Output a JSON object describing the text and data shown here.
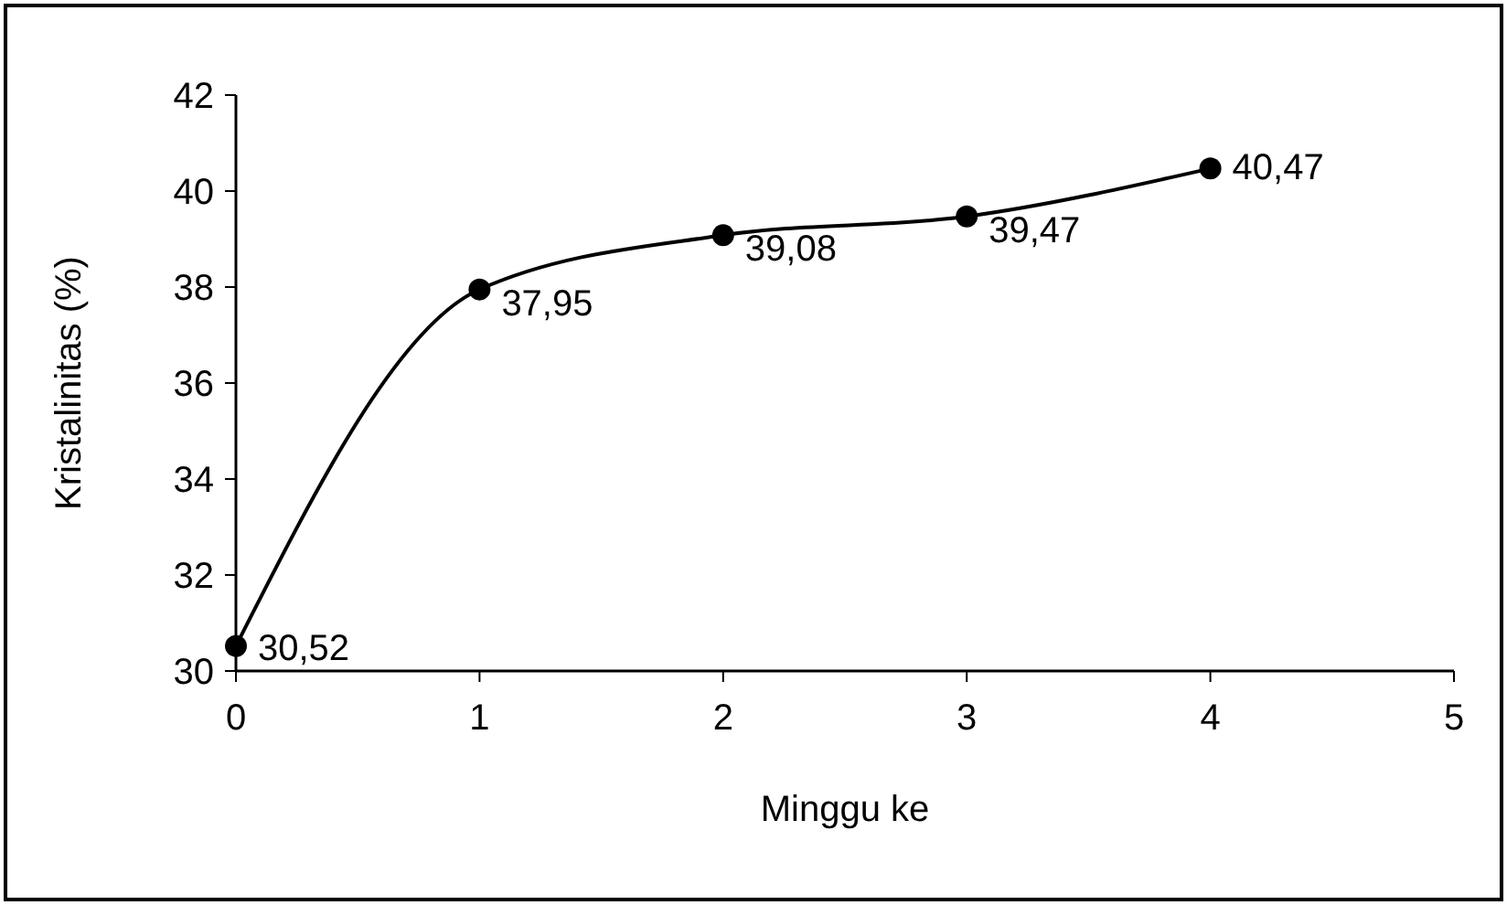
{
  "chart_data": {
    "type": "line",
    "xlabel": "Minggu ke",
    "ylabel": "Kristalinitas (%)",
    "x": [
      0,
      1,
      2,
      3,
      4
    ],
    "series": [
      {
        "color": "#000000",
        "values": [
          30.52,
          37.95,
          39.08,
          39.47,
          40.47
        ],
        "value_labels": [
          "30,52",
          "37,95",
          "39,08",
          "39,47",
          "40,47"
        ]
      }
    ],
    "xlim": [
      0,
      5
    ],
    "xticks": [
      0,
      1,
      2,
      3,
      4,
      5
    ],
    "ylim": [
      30,
      42
    ],
    "yticks": [
      30,
      32,
      34,
      36,
      38,
      40,
      42
    ],
    "grid": false,
    "marker": "circle",
    "line_style": "solid"
  }
}
